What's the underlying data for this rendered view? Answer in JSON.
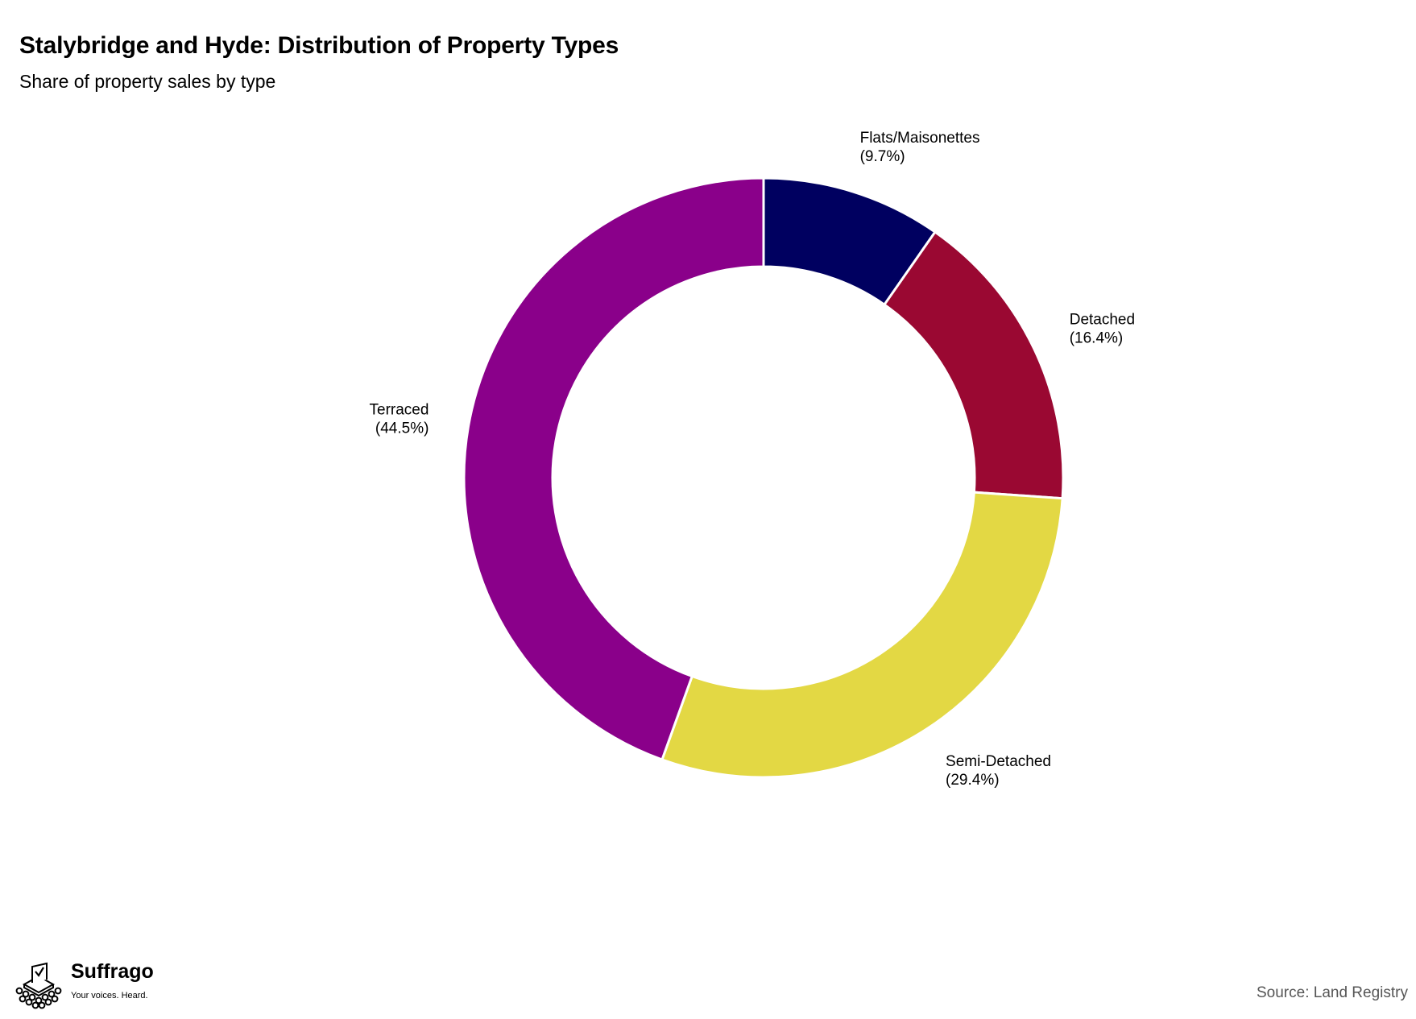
{
  "header": {
    "title": "Stalybridge and Hyde: Distribution of Property Types",
    "subtitle": "Share of property sales by type"
  },
  "chart_data": {
    "type": "pie",
    "style": "donut",
    "title": "Stalybridge and Hyde: Distribution of Property Types",
    "subtitle": "Share of property sales by type",
    "unit": "%",
    "slices": [
      {
        "name": "Flats/Maisonettes",
        "value": 9.7,
        "label": "(9.7%)",
        "color": "#000060"
      },
      {
        "name": "Detached",
        "value": 16.4,
        "label": "(16.4%)",
        "color": "#9a0832"
      },
      {
        "name": "Semi-Detached",
        "value": 29.4,
        "label": "(29.4%)",
        "color": "#e3d844"
      },
      {
        "name": "Terraced",
        "value": 44.5,
        "label": "(44.5%)",
        "color": "#8a008a"
      }
    ],
    "start_angle": "12 o'clock",
    "direction": "clockwise"
  },
  "footer": {
    "brand_name": "Suffrago",
    "brand_tagline": "Your voices. Heard.",
    "source": "Source: Land Registry"
  },
  "icons": {
    "logo": "ballot-box-crowd-icon"
  }
}
